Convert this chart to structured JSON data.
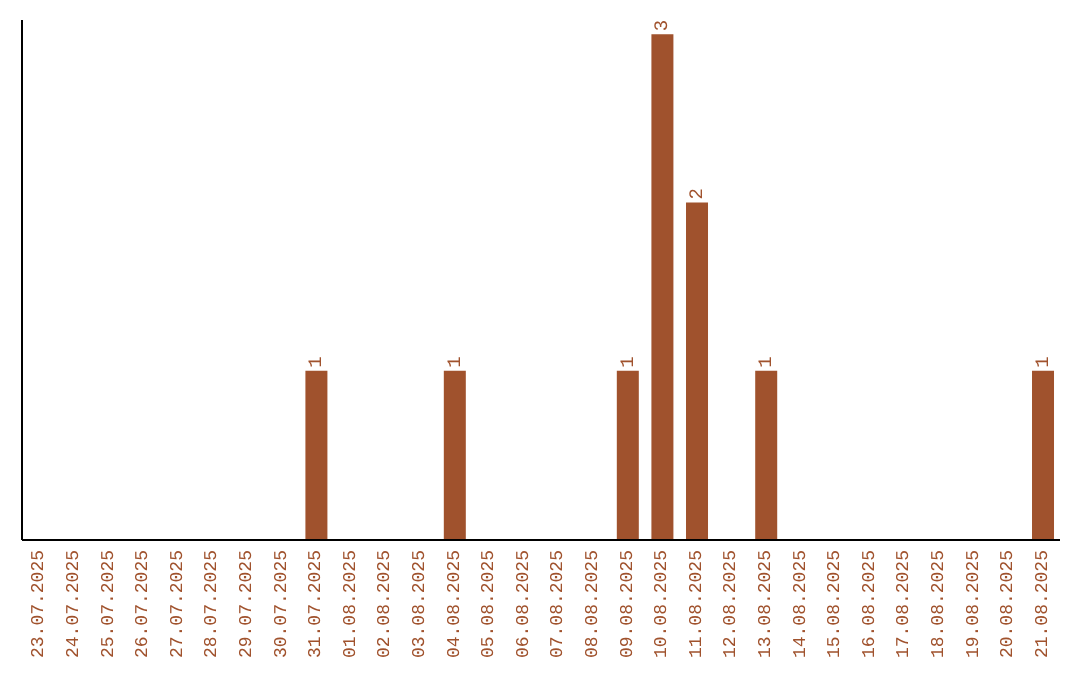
{
  "chart_data": {
    "type": "bar",
    "categories": [
      "23.07.2025",
      "24.07.2025",
      "25.07.2025",
      "26.07.2025",
      "27.07.2025",
      "28.07.2025",
      "29.07.2025",
      "30.07.2025",
      "31.07.2025",
      "01.08.2025",
      "02.08.2025",
      "03.08.2025",
      "04.08.2025",
      "05.08.2025",
      "06.08.2025",
      "07.08.2025",
      "08.08.2025",
      "09.08.2025",
      "10.08.2025",
      "11.08.2025",
      "12.08.2025",
      "13.08.2025",
      "14.08.2025",
      "15.08.2025",
      "16.08.2025",
      "17.08.2025",
      "18.08.2025",
      "19.08.2025",
      "20.08.2025",
      "21.08.2025"
    ],
    "values": [
      0,
      0,
      0,
      0,
      0,
      0,
      0,
      0,
      1,
      0,
      0,
      0,
      1,
      0,
      0,
      0,
      0,
      1,
      3,
      2,
      0,
      1,
      0,
      0,
      0,
      0,
      0,
      0,
      0,
      1
    ],
    "value_labels": [
      null,
      null,
      null,
      null,
      null,
      null,
      null,
      null,
      "1",
      null,
      null,
      null,
      "1",
      null,
      null,
      null,
      null,
      "1",
      "3",
      "2",
      null,
      "1",
      null,
      null,
      null,
      null,
      null,
      null,
      null,
      "1"
    ],
    "color": "#a0522d",
    "grid": false,
    "legend": false
  }
}
